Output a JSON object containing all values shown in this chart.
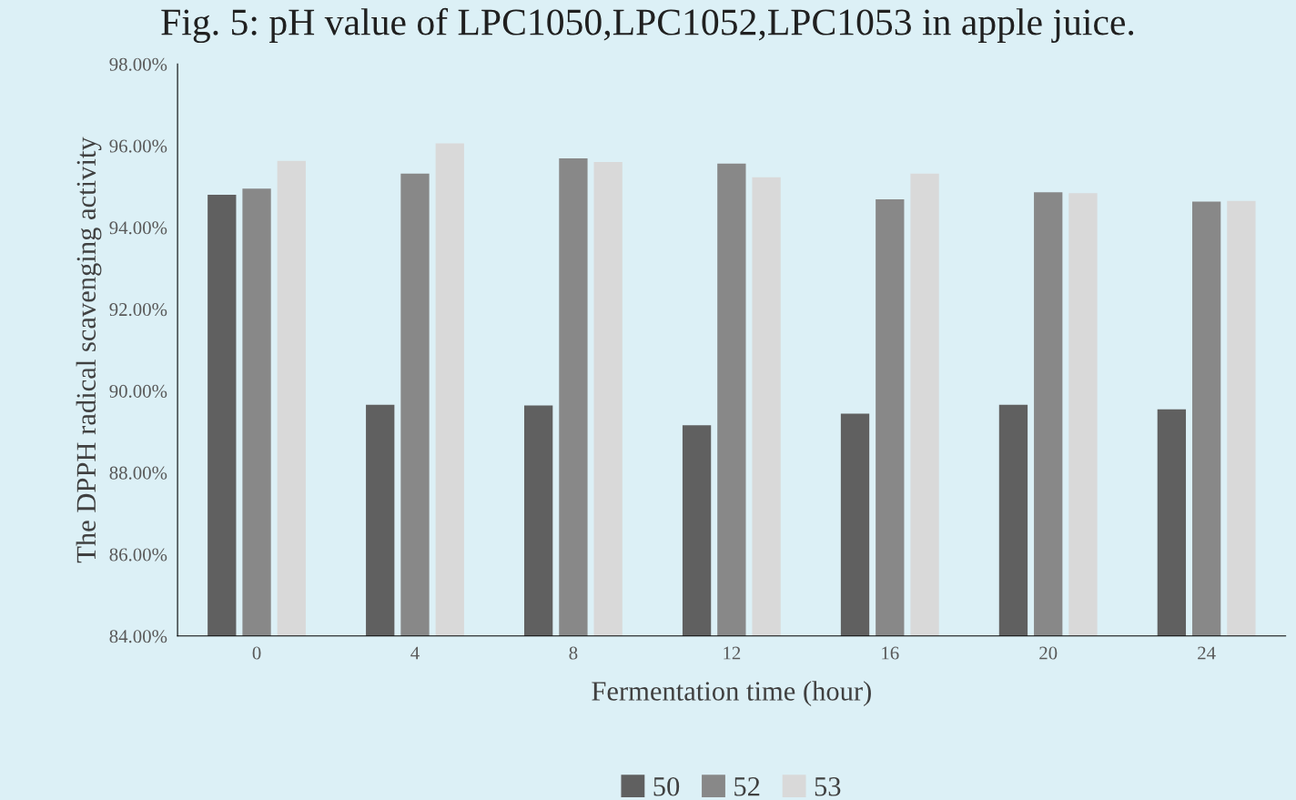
{
  "chart_data": {
    "type": "bar",
    "title": "Fig. 5: pH value of LPC1050,LPC1052,LPC1053 in apple juice.",
    "xlabel": "Fermentation time (hour)",
    "ylabel": "The DPPH radical scavenging activity",
    "categories": [
      "0",
      "4",
      "8",
      "12",
      "16",
      "20",
      "24"
    ],
    "series": [
      {
        "name": "50",
        "color": "#606060",
        "values": [
          94.8,
          89.66,
          89.64,
          89.16,
          89.44,
          89.66,
          89.55
        ]
      },
      {
        "name": "52",
        "color": "#888888",
        "values": [
          94.95,
          95.32,
          95.69,
          95.56,
          94.69,
          94.86,
          94.63
        ]
      },
      {
        "name": "53",
        "color": "#d9d9d9",
        "values": [
          95.63,
          96.06,
          95.6,
          95.23,
          95.32,
          94.84,
          94.65
        ]
      }
    ],
    "ylim": [
      84,
      98
    ],
    "yticks": [
      {
        "value": 84,
        "label": "84.00%"
      },
      {
        "value": 86,
        "label": "86.00%"
      },
      {
        "value": 88,
        "label": "88.00%"
      },
      {
        "value": 90,
        "label": "90.00%"
      },
      {
        "value": 92,
        "label": "92.00%"
      },
      {
        "value": 94,
        "label": "94.00%"
      },
      {
        "value": 96,
        "label": "96.00%"
      },
      {
        "value": 98,
        "label": "98.00%"
      }
    ],
    "grid": false,
    "legend": "bottom"
  }
}
